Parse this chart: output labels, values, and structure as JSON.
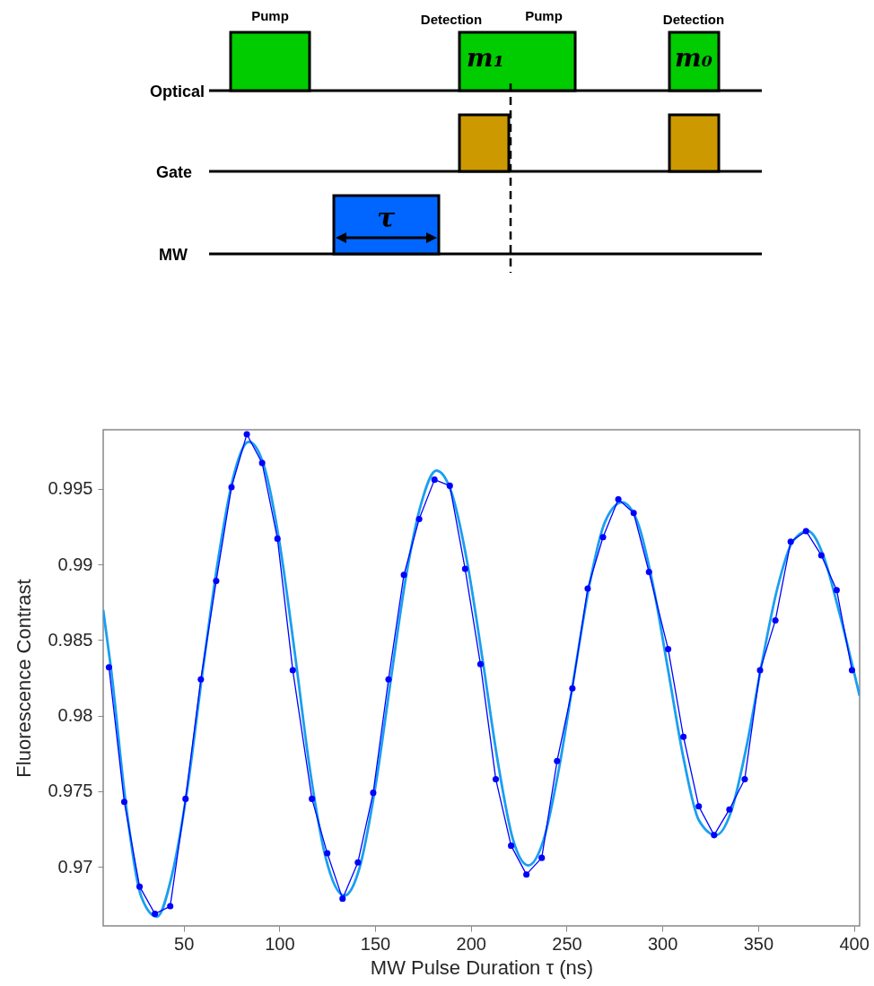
{
  "chart_data": [
    {
      "type": "other",
      "annotations": [
        "Pump",
        "Detection",
        "Pump",
        "Detection",
        "Optical",
        "Gate",
        "MW",
        "m₁",
        "m₀",
        "τ"
      ]
    },
    {
      "type": "line",
      "xlabel": "MW Pulse Duration τ (ns)",
      "ylabel": "Fluorescence Contrast",
      "xlim": [
        8,
        403
      ],
      "ylim": [
        0.9661,
        0.9989
      ],
      "xticks": [
        50,
        100,
        150,
        200,
        250,
        300,
        350,
        400
      ],
      "yticks": [
        0.97,
        0.975,
        0.98,
        0.985,
        0.99,
        0.995
      ],
      "grid": false,
      "series": [
        {
          "type": "line",
          "color": "#1a9ff0",
          "marker": "none",
          "x": [
            8,
            12,
            20,
            28,
            36,
            44,
            52,
            60,
            68,
            76,
            84,
            92,
            100,
            108,
            116,
            124,
            134,
            142,
            150,
            158,
            166,
            174,
            182,
            190,
            198,
            206,
            214,
            222,
            230,
            238,
            246,
            254,
            262,
            270,
            279,
            287,
            295,
            303,
            311,
            319,
            328,
            336,
            344,
            352,
            360,
            368,
            376,
            384,
            392,
            403
          ],
          "values": [
            0.987,
            0.9832,
            0.974,
            0.968,
            0.9667,
            0.9695,
            0.9752,
            0.983,
            0.9903,
            0.9958,
            0.9981,
            0.9965,
            0.9915,
            0.9842,
            0.9764,
            0.9707,
            0.9681,
            0.97,
            0.9752,
            0.9822,
            0.9891,
            0.994,
            0.9962,
            0.9947,
            0.9902,
            0.9838,
            0.977,
            0.9718,
            0.9701,
            0.9718,
            0.9765,
            0.9827,
            0.9887,
            0.9928,
            0.9941,
            0.9928,
            0.9887,
            0.983,
            0.9772,
            0.9731,
            0.9721,
            0.9737,
            0.978,
            0.9835,
            0.9884,
            0.9915,
            0.9922,
            0.9906,
            0.987,
            0.9813
          ]
        },
        {
          "type": "line",
          "color": "#0000ff",
          "marker": "circle",
          "x": [
            11,
            19,
            27,
            35,
            43,
            51,
            59,
            67,
            75,
            83,
            91,
            99,
            107,
            117,
            125,
            133,
            141,
            149,
            157,
            165,
            173,
            181,
            189,
            197,
            205,
            213,
            221,
            229,
            237,
            245,
            253,
            261,
            269,
            277,
            285,
            293,
            303,
            311,
            319,
            327,
            335,
            343,
            351,
            359,
            367,
            375,
            383,
            391,
            399
          ],
          "values": [
            0.9832,
            0.9743,
            0.9687,
            0.9669,
            0.9674,
            0.9745,
            0.9824,
            0.9889,
            0.9951,
            0.9986,
            0.9967,
            0.9917,
            0.983,
            0.9745,
            0.9709,
            0.9679,
            0.9703,
            0.9749,
            0.9824,
            0.9893,
            0.993,
            0.9956,
            0.9952,
            0.9897,
            0.9834,
            0.9758,
            0.9714,
            0.9695,
            0.9706,
            0.977,
            0.9818,
            0.9884,
            0.9918,
            0.9943,
            0.9934,
            0.9895,
            0.9844,
            0.9786,
            0.974,
            0.9721,
            0.9738,
            0.9758,
            0.983,
            0.9863,
            0.9915,
            0.9922,
            0.9906,
            0.9883,
            0.983
          ]
        }
      ]
    }
  ]
}
